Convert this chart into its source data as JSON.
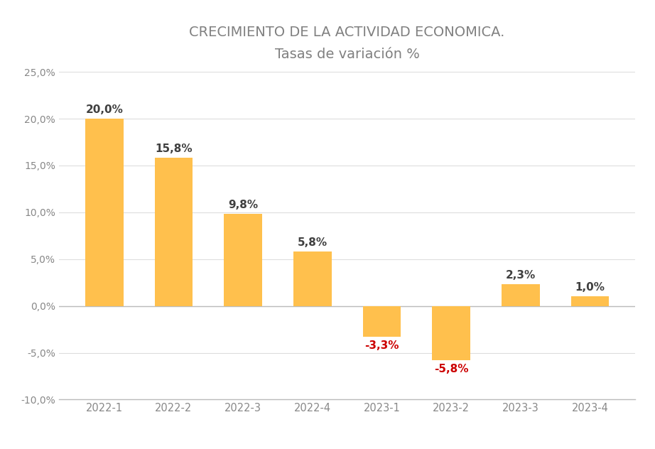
{
  "categories": [
    "2022-1",
    "2022-2",
    "2022-3",
    "2022-4",
    "2023-1",
    "2023-2",
    "2023-3",
    "2023-4"
  ],
  "values": [
    20.0,
    15.8,
    9.8,
    5.8,
    -3.3,
    -5.8,
    2.3,
    1.0
  ],
  "bar_color": "#FFC04D",
  "label_color_positive": "#404040",
  "label_color_negative": "#CC0000",
  "title_line1": "CRECIMIENTO DE LA ACTIVIDAD ECONOMICA.",
  "title_line2": "Tasas de variación %",
  "title_color": "#808080",
  "subtitle_color": "#808080",
  "ylim": [
    -10,
    25
  ],
  "yticks": [
    -10,
    -5,
    0,
    5,
    10,
    15,
    20,
    25
  ],
  "ytick_labels": [
    "-10,0%",
    "-5,0%",
    "0,0%",
    "5,0%",
    "10,0%",
    "15,0%",
    "20,0%",
    "25,0%"
  ],
  "background_color": "#FFFFFF",
  "axis_color": "#BBBBBB",
  "grid_color": "#DDDDDD"
}
